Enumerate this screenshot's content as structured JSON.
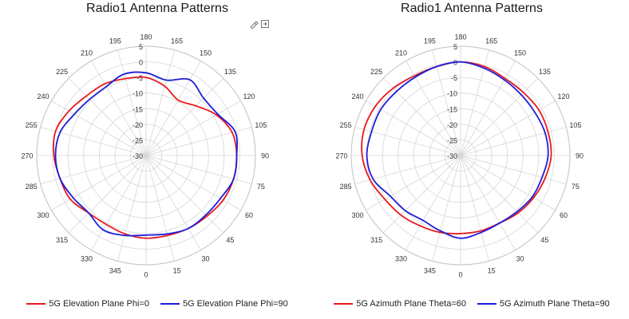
{
  "icons": [
    "brush-icon",
    "export-icon"
  ],
  "colors": {
    "grid": "#d6d6d6",
    "tick_text": "#333333"
  },
  "chart_data": [
    {
      "type": "polar-line",
      "title": "Radio1 Antenna Patterns",
      "angle_zero_location": "bottom",
      "angle_direction": "counterclockwise",
      "theta_ticks": [
        0,
        15,
        30,
        45,
        60,
        75,
        90,
        105,
        120,
        135,
        150,
        165,
        180,
        195,
        210,
        225,
        240,
        255,
        270,
        285,
        300,
        315,
        330,
        345
      ],
      "theta_tick_labels": [
        "0",
        "15",
        "30",
        "45",
        "60",
        "75",
        "90",
        "105",
        "120",
        "135",
        "150",
        "165",
        "180",
        "195",
        "210",
        "225",
        "240",
        "255",
        "270",
        "285",
        "300",
        "315",
        "330",
        "345"
      ],
      "r_range": [
        -30,
        5
      ],
      "r_ticks": [
        -30,
        -25,
        -20,
        -15,
        -10,
        -5,
        0,
        5
      ],
      "r_tick_labels": [
        "-30",
        "-25",
        "-20",
        "-15",
        "-10",
        "-5",
        "0",
        "5"
      ],
      "grid": true,
      "legend_position": "bottom",
      "series": [
        {
          "name": "5G Elevation Plane Phi=0",
          "color": "#e8181e",
          "theta": [
            0,
            15,
            30,
            45,
            60,
            75,
            90,
            105,
            120,
            135,
            150,
            165,
            180,
            195,
            210,
            225,
            240,
            255,
            270,
            285,
            300,
            315,
            330,
            345
          ],
          "r": [
            -3.5,
            -3.5,
            -3,
            -2.5,
            -1.5,
            -1,
            -1,
            -1.5,
            -4,
            -7.5,
            -9.5,
            -7,
            -5,
            -4.5,
            -3.5,
            -3,
            -1.5,
            0,
            -0.5,
            -1.5,
            -2,
            -4,
            -4.5,
            -4
          ]
        },
        {
          "name": "5G Elevation Plane Phi=90",
          "color": "#1d1dd8",
          "theta": [
            0,
            15,
            30,
            45,
            60,
            75,
            90,
            105,
            120,
            135,
            150,
            165,
            180,
            195,
            210,
            225,
            240,
            255,
            270,
            285,
            300,
            315,
            330,
            345
          ],
          "r": [
            -4.5,
            -4,
            -3,
            -3,
            -2.5,
            -1,
            -1,
            -0.5,
            -3.5,
            -4,
            -2,
            -5,
            -3.5,
            -3,
            -4.5,
            -4.5,
            -3.5,
            -1.5,
            -1,
            -1.5,
            -3,
            -4,
            -2.5,
            -3.5
          ]
        }
      ]
    },
    {
      "type": "polar-line",
      "title": "Radio1 Antenna Patterns",
      "angle_zero_location": "bottom",
      "angle_direction": "counterclockwise",
      "theta_ticks": [
        0,
        15,
        30,
        45,
        60,
        75,
        90,
        105,
        120,
        135,
        150,
        165,
        180,
        195,
        210,
        225,
        240,
        255,
        270,
        285,
        300,
        315,
        330,
        345
      ],
      "theta_tick_labels": [
        "0",
        "15",
        "30",
        "45",
        "60",
        "75",
        "90",
        "105",
        "120",
        "135",
        "150",
        "165",
        "180",
        "195",
        "210",
        "225",
        "240",
        "255",
        "270",
        "285",
        "300",
        "315",
        "330",
        "345"
      ],
      "r_range": [
        -30,
        5
      ],
      "r_ticks": [
        -30,
        -25,
        -20,
        -15,
        -10,
        -5,
        0,
        5
      ],
      "r_tick_labels": [
        "-30",
        "-25",
        "-20",
        "-15",
        "-10",
        "-5",
        "0",
        "5"
      ],
      "grid": true,
      "legend_position": "bottom",
      "series": [
        {
          "name": "5G Azimuth Plane Theta=60",
          "color": "#e8181e",
          "theta": [
            0,
            15,
            30,
            45,
            60,
            75,
            90,
            105,
            120,
            135,
            150,
            165,
            180,
            195,
            210,
            225,
            240,
            255,
            270,
            285,
            300,
            315,
            330,
            345
          ],
          "r": [
            -5,
            -5,
            -5,
            -4,
            -3,
            -2,
            -1,
            -1,
            -1,
            -1.5,
            -1.5,
            -0.5,
            0,
            -0.5,
            -0.5,
            0.5,
            1.5,
            2,
            1.5,
            0,
            -2,
            -3,
            -4,
            -4.5
          ]
        },
        {
          "name": "5G Azimuth Plane Theta=90",
          "color": "#1d1dd8",
          "theta": [
            0,
            15,
            30,
            45,
            60,
            75,
            90,
            105,
            120,
            135,
            150,
            165,
            180,
            195,
            210,
            225,
            240,
            255,
            270,
            285,
            300,
            315,
            330,
            345
          ],
          "r": [
            -3.5,
            -4.5,
            -5,
            -4.5,
            -3.5,
            -3,
            -2,
            -2,
            -2.5,
            -2.5,
            -2,
            -1,
            0,
            -0.5,
            -1,
            -1,
            -0.5,
            -0.5,
            0,
            -1,
            -4,
            -5,
            -6,
            -5
          ]
        }
      ]
    }
  ]
}
